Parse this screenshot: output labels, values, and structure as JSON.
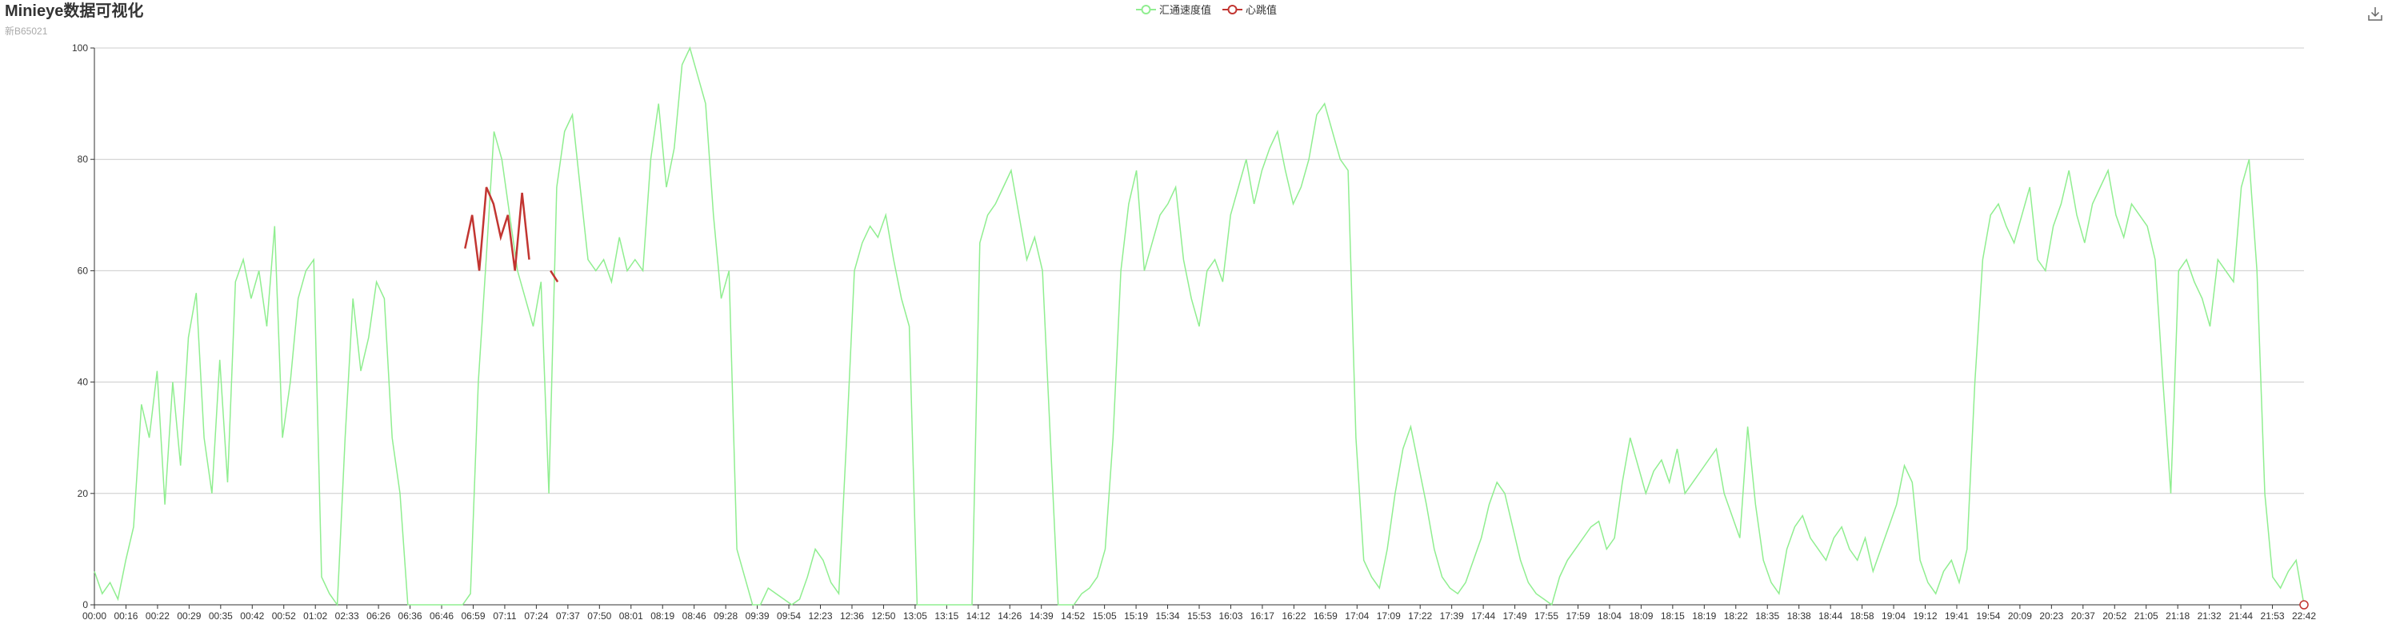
{
  "header": {
    "title": "Minieye数据可视化",
    "subtitle": "新B65021"
  },
  "legend": {
    "items": [
      {
        "label": "汇通速度值",
        "color": "#90ee90",
        "icon": "circle-marker-icon"
      },
      {
        "label": "心跳值",
        "color": "#c23531",
        "icon": "circle-marker-icon"
      }
    ]
  },
  "toolbox": {
    "icon": "download-icon"
  },
  "chart_data": {
    "type": "line",
    "title": "Minieye数据可视化",
    "subtitle": "新B65021",
    "ylim": [
      0,
      100
    ],
    "y_ticks": [
      0,
      20,
      40,
      60,
      80,
      100
    ],
    "grid": true,
    "legend_position": "top-center",
    "x_ticks": [
      "00:00",
      "00:16",
      "00:22",
      "00:29",
      "00:35",
      "00:42",
      "00:52",
      "01:02",
      "02:33",
      "06:26",
      "06:36",
      "06:46",
      "06:59",
      "07:11",
      "07:24",
      "07:37",
      "07:50",
      "08:01",
      "08:19",
      "08:46",
      "09:28",
      "09:39",
      "09:54",
      "12:23",
      "12:36",
      "12:50",
      "13:05",
      "13:15",
      "14:12",
      "14:26",
      "14:39",
      "14:52",
      "15:05",
      "15:19",
      "15:34",
      "15:53",
      "16:03",
      "16:17",
      "16:22",
      "16:59",
      "17:04",
      "17:09",
      "17:22",
      "17:39",
      "17:44",
      "17:49",
      "17:55",
      "17:59",
      "18:04",
      "18:09",
      "18:15",
      "18:19",
      "18:22",
      "18:35",
      "18:38",
      "18:44",
      "18:58",
      "19:04",
      "19:12",
      "19:41",
      "19:54",
      "20:09",
      "20:23",
      "20:37",
      "20:52",
      "21:05",
      "21:18",
      "21:32",
      "21:44",
      "21:53",
      "22:42"
    ],
    "series": [
      {
        "name": "汇通速度值",
        "color": "#90ee90",
        "values": [
          6,
          2,
          4,
          1,
          8,
          14,
          36,
          30,
          42,
          18,
          40,
          25,
          48,
          56,
          30,
          20,
          44,
          22,
          58,
          62,
          55,
          60,
          50,
          68,
          30,
          40,
          55,
          60,
          62,
          5,
          2,
          0,
          30,
          55,
          42,
          48,
          58,
          55,
          30,
          20,
          0,
          0,
          0,
          0,
          0,
          0,
          0,
          0,
          2,
          40,
          62,
          85,
          80,
          70,
          60,
          55,
          50,
          58,
          20,
          75,
          85,
          88,
          75,
          62,
          60,
          62,
          58,
          66,
          60,
          62,
          60,
          80,
          90,
          75,
          82,
          97,
          100,
          95,
          90,
          70,
          55,
          60,
          10,
          5,
          0,
          0,
          3,
          2,
          1,
          0,
          1,
          5,
          10,
          8,
          4,
          2,
          30,
          60,
          65,
          68,
          66,
          70,
          62,
          55,
          50,
          0,
          0,
          0,
          0,
          0,
          0,
          0,
          0,
          65,
          70,
          72,
          75,
          78,
          70,
          62,
          66,
          60,
          30,
          0,
          0,
          0,
          2,
          3,
          5,
          10,
          30,
          60,
          72,
          78,
          60,
          65,
          70,
          72,
          75,
          62,
          55,
          50,
          60,
          62,
          58,
          70,
          75,
          80,
          72,
          78,
          82,
          85,
          78,
          72,
          75,
          80,
          88,
          90,
          85,
          80,
          78,
          30,
          8,
          5,
          3,
          10,
          20,
          28,
          32,
          25,
          18,
          10,
          5,
          3,
          2,
          4,
          8,
          12,
          18,
          22,
          20,
          14,
          8,
          4,
          2,
          1,
          0,
          5,
          8,
          10,
          12,
          14,
          15,
          10,
          12,
          22,
          30,
          25,
          20,
          24,
          26,
          22,
          28,
          20,
          22,
          24,
          26,
          28,
          20,
          16,
          12,
          32,
          18,
          8,
          4,
          2,
          10,
          14,
          16,
          12,
          10,
          8,
          12,
          14,
          10,
          8,
          12,
          6,
          10,
          14,
          18,
          25,
          22,
          8,
          4,
          2,
          6,
          8,
          4,
          10,
          40,
          62,
          70,
          72,
          68,
          65,
          70,
          75,
          62,
          60,
          68,
          72,
          78,
          70,
          65,
          72,
          75,
          78,
          70,
          66,
          72,
          70,
          68,
          62,
          40,
          20,
          60,
          62,
          58,
          55,
          50,
          62,
          60,
          58,
          75,
          80,
          60,
          20,
          5,
          3,
          6,
          8,
          0
        ],
        "note_values": "approximate"
      },
      {
        "name": "心跳值",
        "color": "#c23531",
        "values": [
          null,
          null,
          null,
          null,
          null,
          null,
          null,
          null,
          null,
          null,
          null,
          null,
          null,
          null,
          null,
          null,
          null,
          null,
          null,
          null,
          null,
          null,
          null,
          null,
          null,
          null,
          null,
          null,
          null,
          null,
          null,
          null,
          null,
          null,
          null,
          null,
          null,
          null,
          null,
          null,
          null,
          null,
          null,
          null,
          null,
          null,
          null,
          null,
          null,
          null,
          null,
          null,
          64,
          70,
          60,
          75,
          72,
          66,
          70,
          60,
          74,
          62,
          null,
          null,
          60,
          58,
          null,
          null,
          null,
          null,
          null,
          null,
          null,
          null,
          null,
          null,
          null,
          null,
          null,
          null,
          null,
          null,
          null,
          null,
          null,
          null,
          null,
          null,
          null,
          null,
          null,
          null,
          null,
          null,
          null,
          null,
          null,
          null,
          null,
          null,
          null,
          null,
          null,
          null,
          null,
          null,
          null,
          null,
          null,
          null,
          null,
          null,
          null,
          null,
          null,
          null,
          null,
          null,
          null,
          null,
          null,
          null,
          null,
          null,
          null,
          null,
          null,
          null,
          null,
          null,
          null,
          null,
          null,
          null,
          null,
          null,
          null,
          null,
          null,
          null,
          null,
          null,
          null,
          null,
          null,
          null,
          null,
          null,
          null,
          null,
          null,
          null,
          null,
          null,
          null,
          null,
          null,
          null,
          null,
          null,
          null,
          null,
          null,
          null,
          null,
          null,
          null,
          null,
          null,
          null,
          null,
          null,
          null,
          null,
          null,
          null,
          null,
          null,
          null,
          null,
          null,
          null,
          null,
          null,
          null,
          null,
          null,
          null,
          null,
          null,
          null,
          null,
          null,
          null,
          null,
          null,
          null,
          null,
          null,
          null,
          null,
          null,
          null,
          null,
          null,
          null,
          null,
          null,
          null,
          null,
          null,
          null,
          null,
          null,
          null,
          null,
          null,
          null,
          null,
          null,
          null,
          null,
          null,
          null,
          null,
          null,
          null,
          null,
          null,
          null,
          null,
          null,
          null,
          null,
          null,
          null,
          null,
          null,
          null,
          null,
          null,
          null,
          null,
          null,
          null,
          null,
          null,
          null,
          null,
          null,
          null,
          null,
          null,
          null,
          null,
          null,
          null,
          null,
          null,
          null,
          null,
          null,
          null,
          null,
          null,
          null,
          null,
          null,
          null,
          null,
          null,
          null,
          null,
          null,
          null,
          null,
          null,
          null,
          null,
          null,
          null,
          null,
          null,
          null,
          null,
          null,
          null,
          null,
          null,
          null,
          null,
          null,
          null,
          null,
          null,
          null,
          null,
          null,
          null,
          null,
          null,
          null,
          null,
          null,
          null,
          null,
          null,
          null,
          null,
          null,
          0
        ]
      }
    ]
  }
}
